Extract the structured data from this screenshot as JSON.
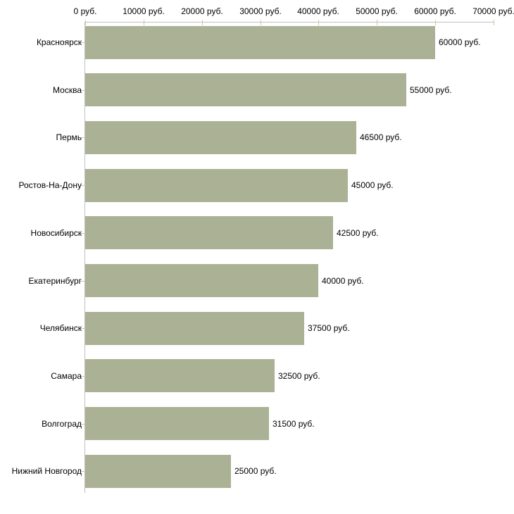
{
  "chart_data": {
    "type": "bar",
    "orientation": "horizontal",
    "title": "",
    "categories": [
      "Красноярск",
      "Москва",
      "Пермь",
      "Ростов-На-Дону",
      "Новосибирск",
      "Екатеринбург",
      "Челябинск",
      "Самара",
      "Волгоград",
      "Нижний Новгород"
    ],
    "values": [
      60000,
      55000,
      46500,
      45000,
      42500,
      40000,
      37500,
      32500,
      31500,
      25000
    ],
    "value_labels": [
      "60000 руб.",
      "55000 руб.",
      "46500 руб.",
      "45000 руб.",
      "42500 руб.",
      "40000 руб.",
      "37500 руб.",
      "32500 руб.",
      "31500 руб.",
      "25000 руб."
    ],
    "x_axis": {
      "position": "top",
      "range": [
        0,
        70000
      ],
      "ticks": [
        0,
        10000,
        20000,
        30000,
        40000,
        50000,
        60000,
        70000
      ],
      "tick_labels": [
        "0 руб.",
        "10000 руб.",
        "20000 руб.",
        "30000 руб.",
        "40000 руб.",
        "50000 руб.",
        "60000 руб.",
        "70000 руб."
      ]
    },
    "legend": null,
    "grid": false,
    "colors": {
      "bar": "#abb195",
      "axis_line": "#c0c0c0",
      "tick": "#c9c9a0",
      "text": "#000000",
      "background": "#ffffff"
    }
  }
}
